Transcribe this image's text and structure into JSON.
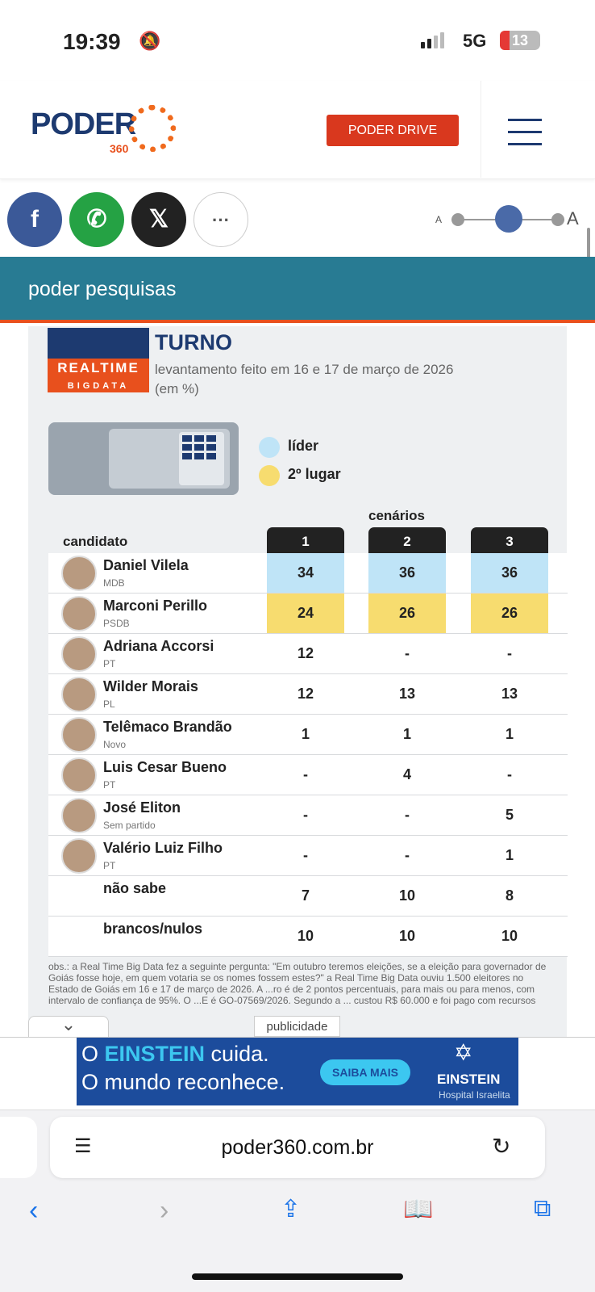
{
  "status_bar": {
    "time": "19:39",
    "network": "5G",
    "battery": "13"
  },
  "header": {
    "logo": "PODER",
    "logo_sub": "360",
    "drive_button": "PODER DRIVE"
  },
  "font_size_control": {
    "small_label": "A",
    "large_label": "A",
    "level": 0.5
  },
  "section_bar": {
    "title": "poder pesquisas"
  },
  "poll": {
    "title_partial": "TURNO",
    "pollster_logo": "REALTIME BIGDATA",
    "subtitle": "levantamento feito em 16 e 17 de março de 2026 (em %)",
    "legend": [
      {
        "label": "líder",
        "color": "#bfe4f7"
      },
      {
        "label": "2º lugar",
        "color": "#f7dc6f"
      }
    ],
    "scenarios_label": "cenários",
    "candidate_header": "candidato",
    "scenarios": [
      "1",
      "2",
      "3"
    ],
    "rows": [
      {
        "name": "Daniel Vilela",
        "party": "MDB",
        "values": [
          "34",
          "36",
          "36"
        ],
        "highlight": "leader"
      },
      {
        "name": "Marconi Perillo",
        "party": "PSDB",
        "values": [
          "24",
          "26",
          "26"
        ],
        "highlight": "second"
      },
      {
        "name": "Adriana Accorsi",
        "party": "PT",
        "values": [
          "12",
          "-",
          "-"
        ]
      },
      {
        "name": "Wilder Morais",
        "party": "PL",
        "values": [
          "12",
          "13",
          "13"
        ]
      },
      {
        "name": "Telêmaco Brandão",
        "party": "Novo",
        "values": [
          "1",
          "1",
          "1"
        ]
      },
      {
        "name": "Luis Cesar Bueno",
        "party": "PT",
        "values": [
          "-",
          "4",
          "-"
        ]
      },
      {
        "name": "José Eliton",
        "party": "Sem partido",
        "values": [
          "-",
          "-",
          "5"
        ]
      },
      {
        "name": "Valério Luiz Filho",
        "party": "PT",
        "values": [
          "-",
          "-",
          "1"
        ]
      },
      {
        "name": "não sabe",
        "party": "",
        "values": [
          "7",
          "10",
          "8"
        ]
      },
      {
        "name": "brancos/nulos",
        "party": "",
        "values": [
          "10",
          "10",
          "10"
        ]
      }
    ],
    "obs": "obs.: a Real Time Big Data fez a seguinte pergunta: \"Em outubro teremos eleições, se a eleição para governador de Goiás fosse hoje, em quem votaria se os nomes fossem estes?\" a Real Time Big Data ouviu 1.500 eleitores no Estado de Goiás em 16 e 17 de março de 2026. A ...ro é de 2 pontos percentuais, para mais ou para menos, com intervalo de confiança de 95%. O ...E é GO-07569/2026. Segundo a ... custou R$ 60.000 e foi pago com recursos"
  },
  "ad": {
    "label": "publicidade",
    "line1_prefix": "O ",
    "line1_brand": "EINSTEIN",
    "line1_suffix": " cuida.",
    "line2": "O mundo reconhece.",
    "cta": "SAIBA MAIS",
    "brand": "EINSTEIN",
    "brand_sub": "Hospital Israelita"
  },
  "browser": {
    "url": "poder360.com.br"
  }
}
